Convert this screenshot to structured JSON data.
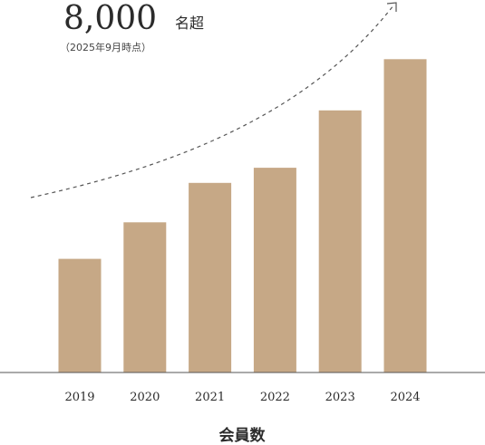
{
  "headline": {
    "number": "8,000",
    "unit": "名超",
    "note": "（2025年9月時点）"
  },
  "colors": {
    "bar": "#c6a886",
    "axis": "#555555",
    "trend": "#555555"
  },
  "chart_data": {
    "type": "bar",
    "categories": [
      "2019",
      "2020",
      "2021",
      "2022",
      "2023",
      "2024"
    ],
    "values": [
      2020,
      2670,
      3370,
      3640,
      4660,
      5570
    ],
    "xlabel": "会員数",
    "ylabel": "",
    "ylim": [
      0,
      6300
    ],
    "grid": false,
    "legend": "none",
    "trend_arrow": "dashed upward curve"
  }
}
